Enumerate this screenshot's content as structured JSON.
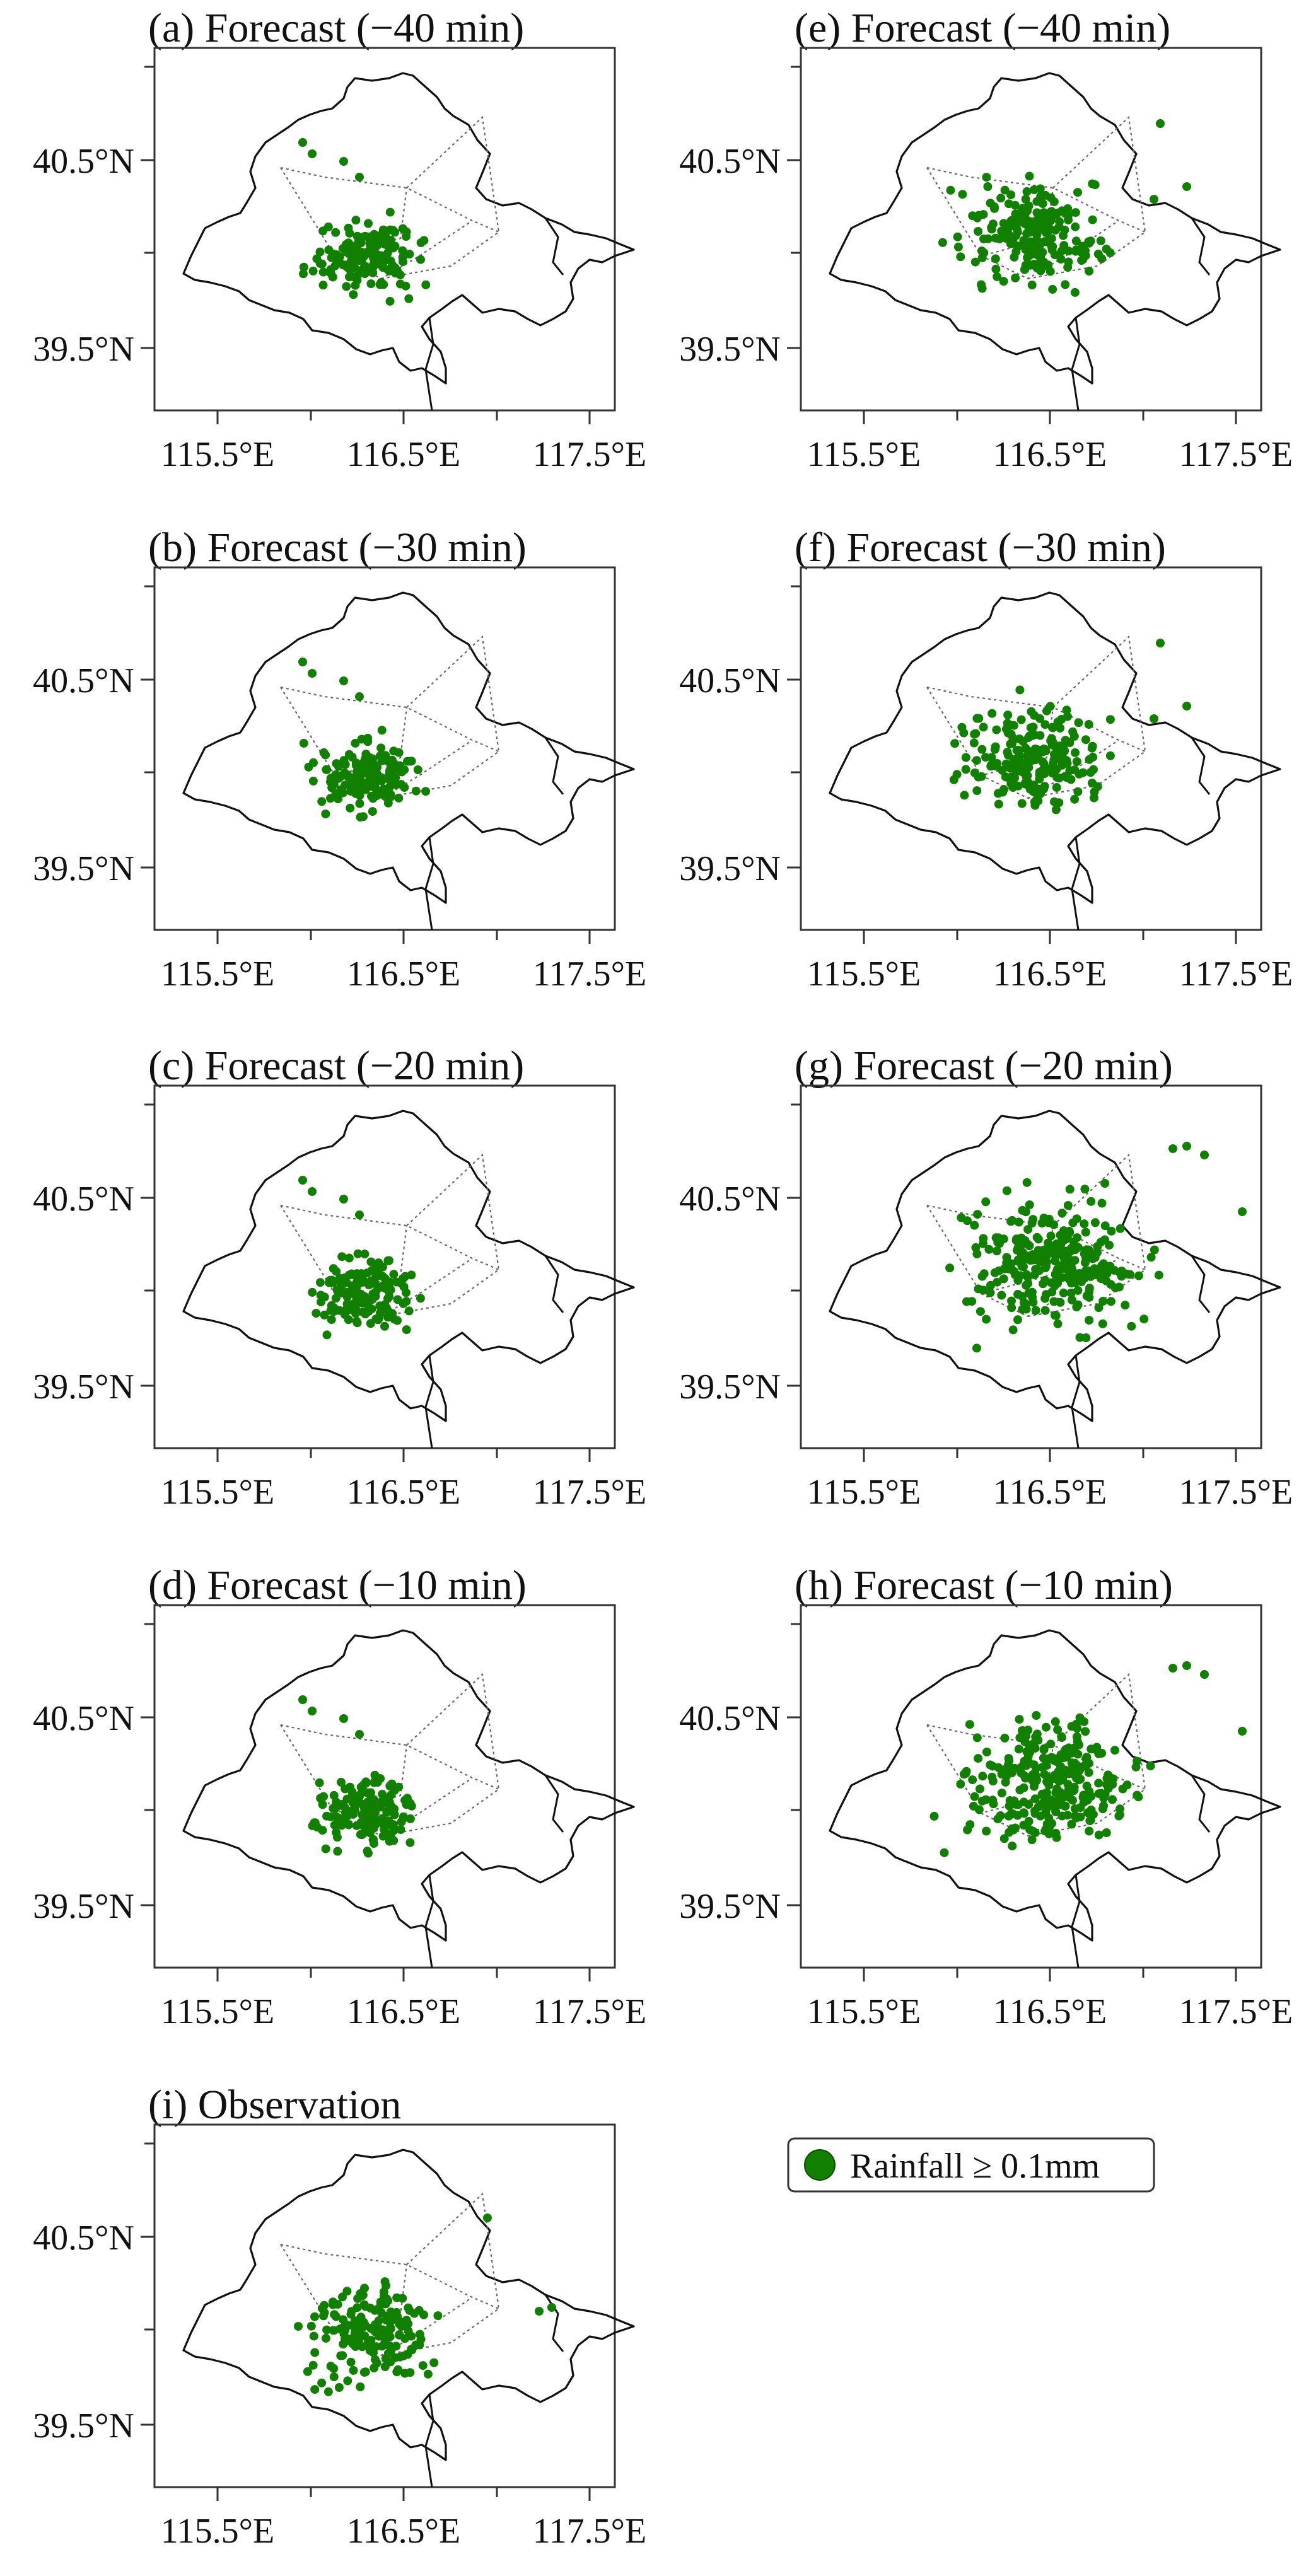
{
  "figure": {
    "point_color": "#118000",
    "lon_ticks": [
      "115.5°E",
      "116.5°E",
      "117.5°E"
    ],
    "lat_ticks": [
      "40.5°N",
      "39.5°N"
    ],
    "legend": {
      "label": "Rainfall ≥ 0.1mm",
      "marker": "filled-circle-icon"
    }
  },
  "panels": [
    {
      "id": "a",
      "title": "(a) Forecast (−40 min)",
      "density": "low",
      "spread": "sw-cluster"
    },
    {
      "id": "e",
      "title": "(e) Forecast (−40 min)",
      "density": "medium",
      "spread": "central"
    },
    {
      "id": "b",
      "title": "(b) Forecast (−30 min)",
      "density": "low",
      "spread": "sw-cluster"
    },
    {
      "id": "f",
      "title": "(f) Forecast (−30 min)",
      "density": "medium",
      "spread": "central"
    },
    {
      "id": "c",
      "title": "(c) Forecast (−20 min)",
      "density": "low",
      "spread": "sw-cluster"
    },
    {
      "id": "g",
      "title": "(g) Forecast (−20 min)",
      "density": "high",
      "spread": "wide"
    },
    {
      "id": "d",
      "title": "(d) Forecast (−10 min)",
      "density": "low",
      "spread": "sw-cluster"
    },
    {
      "id": "h",
      "title": "(h) Forecast (−10 min)",
      "density": "veryhigh",
      "spread": "wide"
    },
    {
      "id": "i",
      "title": "(i) Observation",
      "density": "obs",
      "spread": "obs"
    }
  ]
}
